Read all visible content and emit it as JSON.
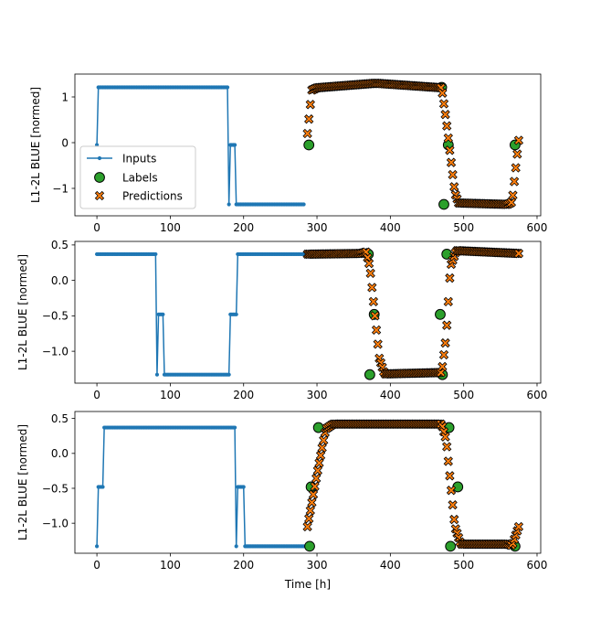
{
  "colors": {
    "inputs": "#1f77b4",
    "labels": "#2ca02c",
    "predictions": "#ff7f0e",
    "edge": "#000000"
  },
  "chart_data": [
    {
      "type": "line",
      "ylabel": "L1-2L BLUE [normed]",
      "xlabel": "",
      "xlim": [
        -30,
        605
      ],
      "ylim": [
        -1.6,
        1.5
      ],
      "xticks": [
        0,
        100,
        200,
        300,
        400,
        500,
        600
      ],
      "yticks": [
        -1,
        0,
        1
      ],
      "ytick_labels": [
        "−1",
        "0",
        "1"
      ],
      "legend": {
        "placement": "lower-left",
        "entries": [
          "Inputs",
          "Labels",
          "Predictions"
        ]
      },
      "inputs": {
        "name": "Inputs",
        "x_start": 0,
        "x_end": 282,
        "x_step": 2,
        "segments": [
          {
            "from": 0,
            "to": 2,
            "y": -0.05
          },
          {
            "from": 2,
            "to": 180,
            "y": 1.21
          },
          {
            "from": 180,
            "to": 182,
            "y": -1.35
          },
          {
            "from": 182,
            "to": 190,
            "y": -0.05
          },
          {
            "from": 190,
            "to": 282,
            "y": -1.35
          }
        ]
      },
      "labels": {
        "name": "Labels",
        "x": [
          289,
          470,
          473,
          479,
          570
        ],
        "y": [
          -0.05,
          1.21,
          -1.35,
          -0.05,
          -0.05
        ]
      },
      "predictions": {
        "name": "Predictions",
        "x_start": 287,
        "x_end": 575,
        "x_step": 2,
        "knots": [
          [
            287,
            0.2
          ],
          [
            293,
            1.15
          ],
          [
            300,
            1.2
          ],
          [
            380,
            1.3
          ],
          [
            470,
            1.2
          ],
          [
            476,
            0.5
          ],
          [
            488,
            -1.1
          ],
          [
            493,
            -1.32
          ],
          [
            560,
            -1.35
          ],
          [
            566,
            -1.3
          ],
          [
            575,
            0.05
          ]
        ]
      }
    },
    {
      "type": "line",
      "ylabel": "L1-2L BLUE [normed]",
      "xlabel": "",
      "xlim": [
        -30,
        605
      ],
      "ylim": [
        -1.45,
        0.55
      ],
      "xticks": [
        0,
        100,
        200,
        300,
        400,
        500,
        600
      ],
      "yticks": [
        0.5,
        0.0,
        -0.5,
        -1.0
      ],
      "ytick_labels": [
        "0.5",
        "0.0",
        "−0.5",
        "−1.0"
      ],
      "inputs": {
        "name": "Inputs",
        "x_start": 0,
        "x_end": 282,
        "x_step": 2,
        "segments": [
          {
            "from": 0,
            "to": 82,
            "y": 0.37
          },
          {
            "from": 82,
            "to": 84,
            "y": -1.33
          },
          {
            "from": 84,
            "to": 92,
            "y": -0.48
          },
          {
            "from": 92,
            "to": 182,
            "y": -1.33
          },
          {
            "from": 182,
            "to": 192,
            "y": -0.48
          },
          {
            "from": 192,
            "to": 282,
            "y": 0.37
          }
        ]
      },
      "labels": {
        "name": "Labels",
        "x": [
          370,
          372,
          378,
          468,
          471,
          477
        ],
        "y": [
          0.37,
          -1.33,
          -0.48,
          -0.48,
          -1.33,
          0.37
        ]
      },
      "predictions": {
        "name": "Predictions",
        "x_start": 287,
        "x_end": 575,
        "x_step": 2,
        "knots": [
          [
            287,
            0.37
          ],
          [
            360,
            0.38
          ],
          [
            367,
            0.4
          ],
          [
            372,
            0.2
          ],
          [
            385,
            -1.1
          ],
          [
            392,
            -1.32
          ],
          [
            470,
            -1.3
          ],
          [
            476,
            -0.8
          ],
          [
            482,
            0.2
          ],
          [
            490,
            0.42
          ],
          [
            575,
            0.38
          ]
        ]
      }
    },
    {
      "type": "line",
      "ylabel": "L1-2L BLUE [normed]",
      "xlabel": "Time [h]",
      "xlim": [
        -30,
        605
      ],
      "ylim": [
        -1.43,
        0.6
      ],
      "xticks": [
        0,
        100,
        200,
        300,
        400,
        500,
        600
      ],
      "yticks": [
        0.5,
        0.0,
        -0.5,
        -1.0
      ],
      "ytick_labels": [
        "0.5",
        "0.0",
        "−0.5",
        "−1.0"
      ],
      "inputs": {
        "name": "Inputs",
        "x_start": 0,
        "x_end": 282,
        "x_step": 2,
        "segments": [
          {
            "from": 0,
            "to": 2,
            "y": -1.33
          },
          {
            "from": 2,
            "to": 10,
            "y": -0.48
          },
          {
            "from": 10,
            "to": 190,
            "y": 0.37
          },
          {
            "from": 190,
            "to": 192,
            "y": -1.33
          },
          {
            "from": 192,
            "to": 202,
            "y": -0.48
          },
          {
            "from": 202,
            "to": 282,
            "y": -1.33
          }
        ]
      },
      "labels": {
        "name": "Labels",
        "x": [
          290,
          292,
          302,
          480,
          482,
          492,
          570
        ],
        "y": [
          -1.33,
          -0.48,
          0.37,
          0.37,
          -1.33,
          -0.48,
          -1.33
        ]
      },
      "predictions": {
        "name": "Predictions",
        "x_start": 287,
        "x_end": 575,
        "x_step": 2,
        "knots": [
          [
            287,
            -1.05
          ],
          [
            300,
            -0.3
          ],
          [
            312,
            0.35
          ],
          [
            322,
            0.42
          ],
          [
            470,
            0.42
          ],
          [
            476,
            0.2
          ],
          [
            488,
            -1.05
          ],
          [
            496,
            -1.3
          ],
          [
            560,
            -1.3
          ],
          [
            566,
            -1.32
          ],
          [
            575,
            -1.05
          ]
        ]
      }
    }
  ]
}
